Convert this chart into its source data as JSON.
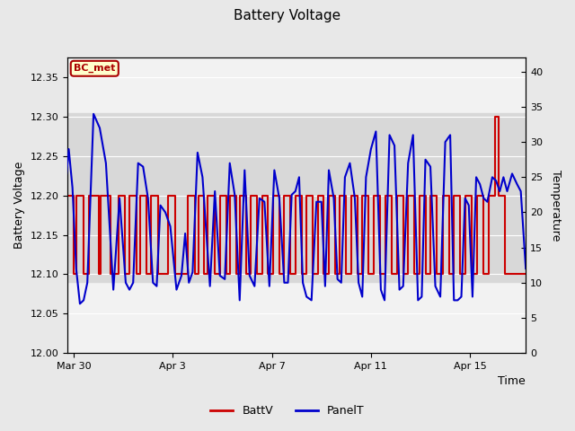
{
  "title": "Battery Voltage",
  "xlabel": "Time",
  "ylabel_left": "Battery Voltage",
  "ylabel_right": "Temperature",
  "annotation_text": "BC_met",
  "annotation_bg": "#ffffcc",
  "annotation_border": "#aa0000",
  "ylim_left": [
    12.0,
    12.375
  ],
  "ylim_right": [
    0,
    42
  ],
  "yticks_left": [
    12.0,
    12.05,
    12.1,
    12.15,
    12.2,
    12.25,
    12.3,
    12.35
  ],
  "yticks_right": [
    0,
    5,
    10,
    15,
    20,
    25,
    30,
    35,
    40
  ],
  "fig_bg": "#e8e8e8",
  "axes_bg": "#f2f2f2",
  "span_lo": 12.09,
  "span_hi": 12.305,
  "span_color": "#d8d8d8",
  "legend_batt_color": "#cc0000",
  "legend_panel_color": "#0000cc",
  "batt_data": [
    [
      0.0,
      12.1
    ],
    [
      0.1,
      12.1
    ],
    [
      0.1,
      12.2
    ],
    [
      0.5,
      12.2
    ],
    [
      0.5,
      12.1
    ],
    [
      0.6,
      12.1
    ],
    [
      0.6,
      12.2
    ],
    [
      0.9,
      12.2
    ],
    [
      0.9,
      12.1
    ],
    [
      1.1,
      12.1
    ],
    [
      1.1,
      12.2
    ],
    [
      1.5,
      12.2
    ],
    [
      1.5,
      12.1
    ],
    [
      1.6,
      12.1
    ],
    [
      1.6,
      12.2
    ],
    [
      2.0,
      12.2
    ],
    [
      2.0,
      12.1
    ],
    [
      2.3,
      12.1
    ],
    [
      2.3,
      12.2
    ],
    [
      2.55,
      12.2
    ],
    [
      2.55,
      12.1
    ],
    [
      2.75,
      12.1
    ],
    [
      2.75,
      12.2
    ],
    [
      3.05,
      12.2
    ],
    [
      3.05,
      12.1
    ],
    [
      3.2,
      12.1
    ],
    [
      3.2,
      12.2
    ],
    [
      3.45,
      12.2
    ],
    [
      3.45,
      12.1
    ],
    [
      3.6,
      12.1
    ],
    [
      3.6,
      12.2
    ],
    [
      3.9,
      12.2
    ],
    [
      3.9,
      12.1
    ],
    [
      4.3,
      12.1
    ],
    [
      4.3,
      12.2
    ],
    [
      4.6,
      12.2
    ],
    [
      4.6,
      12.1
    ],
    [
      5.1,
      12.1
    ],
    [
      5.1,
      12.2
    ],
    [
      5.4,
      12.2
    ],
    [
      5.4,
      12.1
    ],
    [
      5.55,
      12.1
    ],
    [
      5.55,
      12.2
    ],
    [
      5.75,
      12.2
    ],
    [
      5.75,
      12.1
    ],
    [
      5.9,
      12.1
    ],
    [
      5.9,
      12.2
    ],
    [
      6.2,
      12.2
    ],
    [
      6.2,
      12.1
    ],
    [
      6.4,
      12.1
    ],
    [
      6.4,
      12.2
    ],
    [
      6.65,
      12.2
    ],
    [
      6.65,
      12.1
    ],
    [
      6.8,
      12.1
    ],
    [
      6.8,
      12.2
    ],
    [
      7.05,
      12.2
    ],
    [
      7.05,
      12.1
    ],
    [
      7.2,
      12.1
    ],
    [
      7.2,
      12.2
    ],
    [
      7.45,
      12.2
    ],
    [
      7.45,
      12.1
    ],
    [
      7.65,
      12.1
    ],
    [
      7.65,
      12.2
    ],
    [
      7.9,
      12.2
    ],
    [
      7.9,
      12.1
    ],
    [
      8.1,
      12.1
    ],
    [
      8.1,
      12.2
    ],
    [
      8.35,
      12.2
    ],
    [
      8.35,
      12.1
    ],
    [
      8.55,
      12.1
    ],
    [
      8.55,
      12.2
    ],
    [
      8.8,
      12.2
    ],
    [
      8.8,
      12.1
    ],
    [
      9.0,
      12.1
    ],
    [
      9.0,
      12.2
    ],
    [
      9.25,
      12.2
    ],
    [
      9.25,
      12.1
    ],
    [
      9.45,
      12.1
    ],
    [
      9.45,
      12.2
    ],
    [
      9.7,
      12.2
    ],
    [
      9.7,
      12.1
    ],
    [
      9.9,
      12.1
    ],
    [
      9.9,
      12.2
    ],
    [
      10.15,
      12.2
    ],
    [
      10.15,
      12.1
    ],
    [
      10.35,
      12.1
    ],
    [
      10.35,
      12.2
    ],
    [
      10.6,
      12.2
    ],
    [
      10.6,
      12.1
    ],
    [
      10.8,
      12.1
    ],
    [
      10.8,
      12.2
    ],
    [
      11.05,
      12.2
    ],
    [
      11.05,
      12.1
    ],
    [
      11.25,
      12.1
    ],
    [
      11.25,
      12.2
    ],
    [
      11.5,
      12.2
    ],
    [
      11.5,
      12.1
    ],
    [
      11.7,
      12.1
    ],
    [
      11.7,
      12.2
    ],
    [
      11.95,
      12.2
    ],
    [
      11.95,
      12.1
    ],
    [
      12.15,
      12.1
    ],
    [
      12.15,
      12.2
    ],
    [
      12.4,
      12.2
    ],
    [
      12.4,
      12.1
    ],
    [
      12.6,
      12.1
    ],
    [
      12.6,
      12.2
    ],
    [
      12.85,
      12.2
    ],
    [
      12.85,
      12.1
    ],
    [
      13.1,
      12.1
    ],
    [
      13.1,
      12.2
    ],
    [
      13.35,
      12.2
    ],
    [
      13.35,
      12.1
    ],
    [
      13.55,
      12.1
    ],
    [
      13.55,
      12.2
    ],
    [
      13.8,
      12.2
    ],
    [
      13.8,
      12.1
    ],
    [
      14.0,
      12.1
    ],
    [
      14.0,
      12.2
    ],
    [
      14.25,
      12.2
    ],
    [
      14.25,
      12.1
    ],
    [
      14.45,
      12.1
    ],
    [
      14.45,
      12.2
    ],
    [
      14.7,
      12.2
    ],
    [
      14.7,
      12.1
    ],
    [
      14.9,
      12.1
    ],
    [
      14.9,
      12.2
    ],
    [
      15.15,
      12.2
    ],
    [
      15.15,
      12.1
    ],
    [
      15.4,
      12.1
    ],
    [
      15.4,
      12.2
    ],
    [
      15.65,
      12.2
    ],
    [
      15.65,
      12.1
    ],
    [
      15.85,
      12.1
    ],
    [
      15.85,
      12.2
    ],
    [
      16.1,
      12.2
    ],
    [
      16.1,
      12.1
    ],
    [
      16.3,
      12.1
    ],
    [
      16.3,
      12.2
    ],
    [
      16.55,
      12.2
    ],
    [
      16.55,
      12.1
    ],
    [
      16.8,
      12.1
    ],
    [
      16.8,
      12.2
    ],
    [
      17.05,
      12.2
    ],
    [
      17.05,
      12.1
    ],
    [
      17.25,
      12.1
    ],
    [
      17.25,
      12.2
    ],
    [
      17.5,
      12.2
    ],
    [
      17.5,
      12.3
    ],
    [
      17.65,
      12.3
    ],
    [
      17.65,
      12.2
    ],
    [
      17.9,
      12.2
    ],
    [
      17.9,
      12.1
    ],
    [
      18.75,
      12.1
    ]
  ],
  "panel_data": [
    [
      0.0,
      12.0
    ],
    [
      0.15,
      23.0
    ],
    [
      0.3,
      29.0
    ],
    [
      0.45,
      23.5
    ],
    [
      0.6,
      12.0
    ],
    [
      0.75,
      7.0
    ],
    [
      0.9,
      7.5
    ],
    [
      1.05,
      10.0
    ],
    [
      1.3,
      34.0
    ],
    [
      1.55,
      32.0
    ],
    [
      1.8,
      27.0
    ],
    [
      2.1,
      9.0
    ],
    [
      2.35,
      22.0
    ],
    [
      2.6,
      10.0
    ],
    [
      2.75,
      9.0
    ],
    [
      2.9,
      10.0
    ],
    [
      3.1,
      27.0
    ],
    [
      3.3,
      26.5
    ],
    [
      3.5,
      22.0
    ],
    [
      3.7,
      10.0
    ],
    [
      3.85,
      9.5
    ],
    [
      4.0,
      21.0
    ],
    [
      4.2,
      20.0
    ],
    [
      4.4,
      18.0
    ],
    [
      4.65,
      9.0
    ],
    [
      4.85,
      11.0
    ],
    [
      5.0,
      17.0
    ],
    [
      5.15,
      10.0
    ],
    [
      5.3,
      11.5
    ],
    [
      5.5,
      28.5
    ],
    [
      5.7,
      25.0
    ],
    [
      6.0,
      9.5
    ],
    [
      6.2,
      23.0
    ],
    [
      6.4,
      11.0
    ],
    [
      6.6,
      10.5
    ],
    [
      6.8,
      27.0
    ],
    [
      7.0,
      22.5
    ],
    [
      7.2,
      7.5
    ],
    [
      7.4,
      26.0
    ],
    [
      7.6,
      11.0
    ],
    [
      7.8,
      9.5
    ],
    [
      8.0,
      22.0
    ],
    [
      8.2,
      21.5
    ],
    [
      8.4,
      9.5
    ],
    [
      8.6,
      26.0
    ],
    [
      8.8,
      22.0
    ],
    [
      9.0,
      10.0
    ],
    [
      9.15,
      10.0
    ],
    [
      9.3,
      22.5
    ],
    [
      9.45,
      23.0
    ],
    [
      9.6,
      25.0
    ],
    [
      9.75,
      10.0
    ],
    [
      9.9,
      8.0
    ],
    [
      10.1,
      7.5
    ],
    [
      10.3,
      21.5
    ],
    [
      10.5,
      21.5
    ],
    [
      10.65,
      9.5
    ],
    [
      10.8,
      26.0
    ],
    [
      11.0,
      22.0
    ],
    [
      11.15,
      10.5
    ],
    [
      11.3,
      10.0
    ],
    [
      11.45,
      25.0
    ],
    [
      11.65,
      27.0
    ],
    [
      11.85,
      22.0
    ],
    [
      12.0,
      10.0
    ],
    [
      12.15,
      8.0
    ],
    [
      12.3,
      25.0
    ],
    [
      12.5,
      29.0
    ],
    [
      12.7,
      31.5
    ],
    [
      12.9,
      9.0
    ],
    [
      13.05,
      7.5
    ],
    [
      13.25,
      31.0
    ],
    [
      13.45,
      29.5
    ],
    [
      13.65,
      9.0
    ],
    [
      13.8,
      9.5
    ],
    [
      14.0,
      27.0
    ],
    [
      14.2,
      31.0
    ],
    [
      14.4,
      7.5
    ],
    [
      14.55,
      8.0
    ],
    [
      14.7,
      27.5
    ],
    [
      14.9,
      26.5
    ],
    [
      15.1,
      9.5
    ],
    [
      15.3,
      8.0
    ],
    [
      15.5,
      30.0
    ],
    [
      15.7,
      31.0
    ],
    [
      15.85,
      7.5
    ],
    [
      16.0,
      7.5
    ],
    [
      16.15,
      8.0
    ],
    [
      16.3,
      22.0
    ],
    [
      16.45,
      21.0
    ],
    [
      16.6,
      8.0
    ],
    [
      16.75,
      25.0
    ],
    [
      16.9,
      24.0
    ],
    [
      17.05,
      22.0
    ],
    [
      17.2,
      21.5
    ],
    [
      17.4,
      25.0
    ],
    [
      17.55,
      24.5
    ],
    [
      17.7,
      23.0
    ],
    [
      17.85,
      25.0
    ],
    [
      18.0,
      23.0
    ],
    [
      18.2,
      25.5
    ],
    [
      18.4,
      24.0
    ],
    [
      18.55,
      23.0
    ],
    [
      18.75,
      12.0
    ]
  ]
}
